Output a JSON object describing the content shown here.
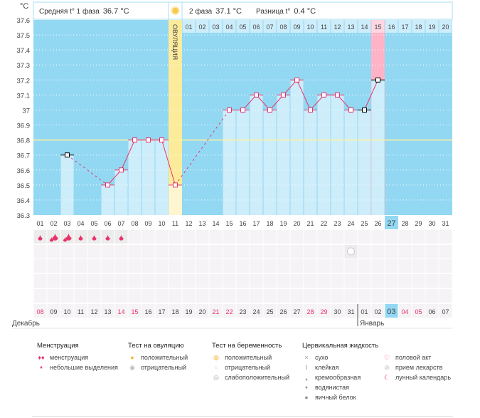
{
  "header": {
    "phase1_label": "Средняя t° 1 фаза",
    "phase1_value": "36.7 °C",
    "phase2_label": "2 фаза",
    "phase2_value": "37.1 °C",
    "diff_label": "Разница t°",
    "diff_value": "0.4 °C",
    "ovulation_label": "ОВУЛЯЦИЯ"
  },
  "colors": {
    "chart_bg": "#93d8f2",
    "bar": "#cdedfb",
    "ovulation": "#fdeb9c",
    "ovulation_light": "#fff6cf",
    "pink": "#ffb3c6",
    "line": "#e8336b",
    "cover": "#fff29a",
    "grid_cell": "#f5f3f5"
  },
  "chart_data": {
    "type": "line",
    "ylabel": "°C",
    "ylim": [
      36.3,
      37.6
    ],
    "yticks": [
      "36.3",
      "36.4",
      "36.5",
      "36.6",
      "36.7",
      "36.8",
      "36.9",
      "37",
      "37.1",
      "37.2",
      "37.3",
      "37.4",
      "37.5",
      "37.6"
    ],
    "cover_line": 36.8,
    "ovulation_day": 11,
    "pink_day": 26,
    "current_day": 27,
    "cycle_days": [
      "01",
      "02",
      "03",
      "04",
      "05",
      "06",
      "07",
      "08",
      "09",
      "10",
      "11",
      "12",
      "13",
      "14",
      "15",
      "16",
      "17",
      "18",
      "19",
      "20",
      "21",
      "22",
      "23",
      "24",
      "25",
      "26",
      "27",
      "28",
      "29",
      "30",
      "31"
    ],
    "temps": [
      null,
      null,
      36.7,
      null,
      null,
      36.5,
      36.6,
      36.8,
      36.8,
      36.8,
      36.5,
      null,
      null,
      null,
      37.0,
      37.0,
      37.1,
      37.0,
      37.1,
      37.2,
      37.0,
      37.1,
      37.1,
      37.0,
      37.0,
      37.2,
      null,
      null,
      null,
      null,
      null
    ],
    "black_markers": [
      3,
      25,
      26
    ],
    "phase2_days": [
      "01",
      "02",
      "03",
      "04",
      "05",
      "06",
      "07",
      "08",
      "09",
      "10",
      "11",
      "12",
      "13",
      "14",
      "15",
      "16",
      "17",
      "18",
      "19",
      "20"
    ],
    "dates": [
      "08",
      "09",
      "10",
      "11",
      "12",
      "13",
      "14",
      "15",
      "16",
      "17",
      "18",
      "19",
      "20",
      "21",
      "22",
      "23",
      "24",
      "25",
      "26",
      "27",
      "28",
      "29",
      "30",
      "31",
      "01",
      "02",
      "03",
      "04",
      "05",
      "06",
      "07"
    ],
    "weekend_idx": [
      1,
      7,
      8,
      14,
      15,
      21,
      22,
      28,
      29
    ],
    "months": [
      "Декабрь",
      "Январь"
    ],
    "month_break_day": 25,
    "menstruation": [
      "small",
      "big",
      "big",
      "small",
      "small",
      "small",
      "small"
    ],
    "pregnancy_test_negative_day": 24
  },
  "legend": {
    "menstruation": {
      "title": "Менструация",
      "items": [
        "менструация",
        "небольшие выделения"
      ]
    },
    "ovulation_test": {
      "title": "Тест на овуляцию",
      "items": [
        "положительный",
        "отрицательный"
      ]
    },
    "pregnancy_test": {
      "title": "Тест на беременность",
      "items": [
        "положительный",
        "отрицательный",
        "слабоположительный"
      ]
    },
    "cervical": {
      "title": "Цервикальная жидкость",
      "items": [
        "сухо",
        "клейкая",
        "кремообразная",
        "водянистая",
        "яичный белок"
      ]
    },
    "other": {
      "items": [
        "половой акт",
        "прием лекарств",
        "лунный календарь"
      ]
    }
  }
}
